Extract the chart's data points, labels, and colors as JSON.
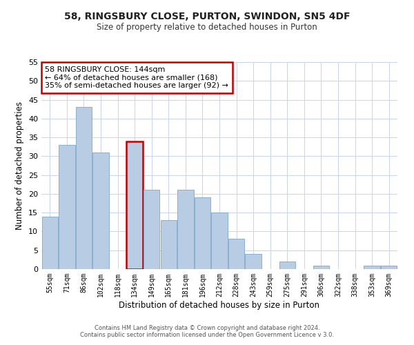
{
  "title1": "58, RINGSBURY CLOSE, PURTON, SWINDON, SN5 4DF",
  "title2": "Size of property relative to detached houses in Purton",
  "xlabel": "Distribution of detached houses by size in Purton",
  "ylabel": "Number of detached properties",
  "categories": [
    "55sqm",
    "71sqm",
    "86sqm",
    "102sqm",
    "118sqm",
    "134sqm",
    "149sqm",
    "165sqm",
    "181sqm",
    "196sqm",
    "212sqm",
    "228sqm",
    "243sqm",
    "259sqm",
    "275sqm",
    "291sqm",
    "306sqm",
    "322sqm",
    "338sqm",
    "353sqm",
    "369sqm"
  ],
  "values": [
    14,
    33,
    43,
    31,
    0,
    34,
    21,
    13,
    21,
    19,
    15,
    8,
    4,
    0,
    2,
    0,
    1,
    0,
    0,
    1,
    1
  ],
  "bar_color": "#b8cce4",
  "bar_edge_color": "#7ba7cc",
  "highlight_index": 5,
  "highlight_fill_color": "#b8cce4",
  "highlight_edge_color": "#c00000",
  "annotation_box_color": "#ffffff",
  "annotation_border_color": "#c00000",
  "annotation_line1": "58 RINGSBURY CLOSE: 144sqm",
  "annotation_line2": "← 64% of detached houses are smaller (168)",
  "annotation_line3": "35% of semi-detached houses are larger (92) →",
  "ylim": [
    0,
    55
  ],
  "yticks": [
    0,
    5,
    10,
    15,
    20,
    25,
    30,
    35,
    40,
    45,
    50,
    55
  ],
  "footer1": "Contains HM Land Registry data © Crown copyright and database right 2024.",
  "footer2": "Contains public sector information licensed under the Open Government Licence v 3.0.",
  "bg_color": "#ffffff",
  "grid_color": "#c8d4e8"
}
